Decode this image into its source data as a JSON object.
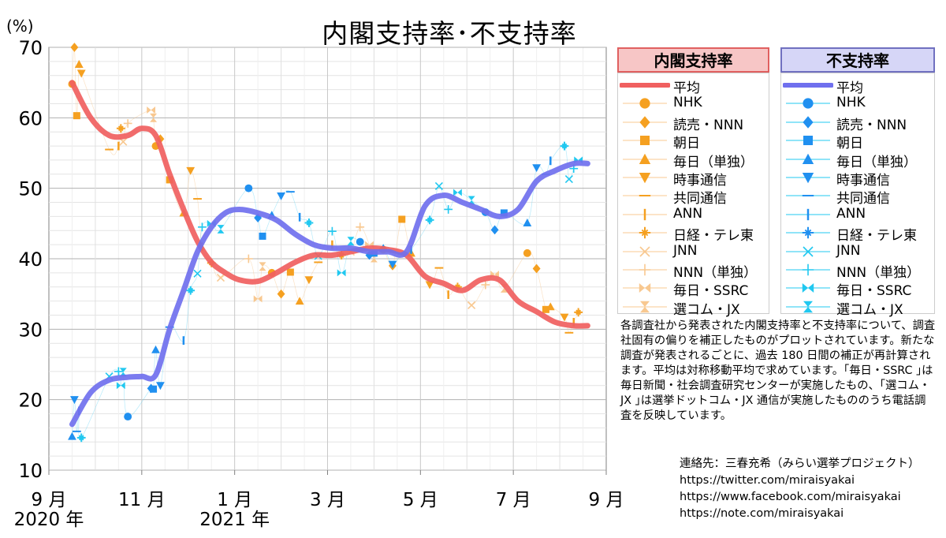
{
  "title": "内閣支持率･不支持率",
  "colors": {
    "approve": "#f06060",
    "disapprove": "#7070ee",
    "approve_marker": "#f5a020",
    "disapprove_marker": "#2090f0",
    "approve_faint": "#f8c890",
    "disapprove_faint": "#70d8f8"
  },
  "legend": {
    "approve": {
      "header": "内閣支持率",
      "items": [
        {
          "label": "平均",
          "marker": "line"
        },
        {
          "label": "NHK",
          "marker": "circle"
        },
        {
          "label": "読売・NNN",
          "marker": "diamond"
        },
        {
          "label": "朝日",
          "marker": "square"
        },
        {
          "label": "毎日（単独）",
          "marker": "triangle-up"
        },
        {
          "label": "時事通信",
          "marker": "triangle-down"
        },
        {
          "label": "共同通信",
          "marker": "hbar"
        },
        {
          "label": "ANN",
          "marker": "vbar"
        },
        {
          "label": "日経・テレ東",
          "marker": "star"
        },
        {
          "label": "JNN",
          "marker": "x"
        },
        {
          "label": "NNN（単独）",
          "marker": "plus"
        },
        {
          "label": "毎日・SSRC",
          "marker": "bowtie-h"
        },
        {
          "label": "選コム・JX",
          "marker": "bowtie-v"
        }
      ]
    },
    "disapprove": {
      "header": "不支持率",
      "items": [
        {
          "label": "平均",
          "marker": "line"
        },
        {
          "label": "NHK",
          "marker": "circle"
        },
        {
          "label": "読売・NNN",
          "marker": "diamond"
        },
        {
          "label": "朝日",
          "marker": "square"
        },
        {
          "label": "毎日（単独）",
          "marker": "triangle-up"
        },
        {
          "label": "時事通信",
          "marker": "triangle-down"
        },
        {
          "label": "共同通信",
          "marker": "hbar"
        },
        {
          "label": "ANN",
          "marker": "vbar"
        },
        {
          "label": "日経・テレ東",
          "marker": "star"
        },
        {
          "label": "JNN",
          "marker": "x"
        },
        {
          "label": "NNN（単独）",
          "marker": "plus"
        },
        {
          "label": "毎日・SSRC",
          "marker": "bowtie-h"
        },
        {
          "label": "選コム・JX",
          "marker": "bowtie-v"
        }
      ]
    }
  },
  "note": "各調査社から発表された内閣支持率と不支持率について、調査社固有の偏りを補正したものがプロットされています。新たな調査が発表されるごとに、過去 180 日間の補正が再計算されます。平均は対称移動平均で求めています。｢毎日・SSRC ｣は毎日新聞・社会調査研究センターが実施したもの、｢選コム・JX ｣は選挙ドットコム・JX 通信が実施したもののうち電話調査を反映しています。",
  "contact": [
    "連絡先：三春充希（みらい選挙プロジェクト）",
    "https://twitter.com/miraisyakai",
    "https://www.facebook.com/miraisyakai",
    "https://note.com/miraisyakai"
  ],
  "chart_data": {
    "type": "line",
    "title": "内閣支持率･不支持率",
    "ylabel": "(%)",
    "ylim": [
      10,
      70
    ],
    "yticks": [
      10,
      20,
      30,
      40,
      50,
      60,
      70
    ],
    "xlim": [
      0,
      12
    ],
    "xticks": [
      {
        "x": 0,
        "label": "9 月",
        "sub": "2020 年"
      },
      {
        "x": 2,
        "label": "11 月",
        "sub": ""
      },
      {
        "x": 4,
        "label": "1 月",
        "sub": "2021 年"
      },
      {
        "x": 6,
        "label": "3 月",
        "sub": ""
      },
      {
        "x": 8,
        "label": "5 月",
        "sub": ""
      },
      {
        "x": 10,
        "label": "7 月",
        "sub": ""
      },
      {
        "x": 12,
        "label": "9 月",
        "sub": ""
      }
    ],
    "x_unit": "months since 2020-09-01",
    "series": [
      {
        "name": "内閣支持率 平均",
        "x": [
          0.5,
          0.9,
          1.3,
          1.7,
          2.0,
          2.3,
          2.6,
          2.9,
          3.2,
          3.5,
          3.8,
          4.1,
          4.5,
          4.9,
          5.3,
          5.7,
          6.1,
          6.5,
          6.9,
          7.3,
          7.7,
          8.1,
          8.5,
          8.9,
          9.3,
          9.7,
          10.1,
          10.5,
          10.9,
          11.3,
          11.6
        ],
        "values": [
          65.0,
          60.0,
          57.5,
          57.5,
          58.5,
          57.5,
          52.0,
          47.0,
          42.5,
          39.5,
          38.0,
          37.0,
          36.8,
          38.0,
          39.5,
          40.5,
          40.5,
          41.0,
          41.5,
          41.3,
          40.5,
          37.5,
          36.5,
          35.5,
          37.0,
          37.0,
          34.0,
          32.5,
          31.0,
          30.5,
          30.5
        ]
      },
      {
        "name": "不支持率 平均",
        "x": [
          0.5,
          0.9,
          1.3,
          1.7,
          2.0,
          2.3,
          2.6,
          2.9,
          3.2,
          3.5,
          3.8,
          4.1,
          4.5,
          4.9,
          5.3,
          5.7,
          6.1,
          6.5,
          6.9,
          7.3,
          7.7,
          8.1,
          8.5,
          8.9,
          9.3,
          9.7,
          10.1,
          10.5,
          10.9,
          11.3,
          11.6
        ],
        "values": [
          16.5,
          21.0,
          22.8,
          23.2,
          23.3,
          23.5,
          30.0,
          35.5,
          41.0,
          44.5,
          46.5,
          47.0,
          46.5,
          45.5,
          43.5,
          42.0,
          41.5,
          41.5,
          41.0,
          41.0,
          41.0,
          47.5,
          49.0,
          48.0,
          47.0,
          46.0,
          47.0,
          51.0,
          52.5,
          53.5,
          53.5
        ]
      },
      {
        "name": "内閣支持率 各社",
        "x": [
          0.5,
          0.55,
          0.6,
          0.65,
          0.7,
          1.3,
          1.5,
          1.55,
          1.6,
          1.7,
          2.2,
          2.25,
          2.3,
          2.4,
          2.6,
          2.9,
          3.05,
          3.2,
          3.3,
          3.5,
          3.7,
          4.3,
          4.5,
          4.6,
          4.8,
          5.0,
          5.2,
          5.4,
          5.6,
          5.8,
          6.1,
          6.3,
          6.5,
          6.7,
          6.9,
          7.0,
          7.2,
          7.4,
          7.6,
          7.8,
          8.2,
          8.4,
          8.6,
          8.8,
          9.1,
          9.4,
          9.6,
          9.8,
          10.3,
          10.5,
          10.7,
          10.8,
          11.1,
          11.2,
          11.3,
          11.4
        ],
        "values": [
          64.8,
          70.0,
          60.3,
          67.6,
          66.3,
          55.5,
          56.0,
          58.5,
          56.6,
          59.2,
          61.1,
          60.0,
          56.0,
          57.0,
          51.2,
          46.5,
          52.5,
          48.5,
          41.7,
          39.4,
          37.3,
          40.0,
          34.3,
          38.9,
          38.0,
          35.0,
          38.1,
          34.0,
          37.0,
          39.5,
          42.0,
          40.5,
          41.0,
          44.5,
          42.0,
          40.1,
          41.3,
          39.0,
          45.6,
          40.8,
          36.3,
          38.7,
          34.9,
          36.0,
          33.4,
          36.3,
          37.8,
          35.8,
          40.8,
          38.6,
          32.8,
          33.2,
          31.7,
          29.5,
          31.0,
          32.4
        ]
      },
      {
        "name": "不支持率 各社",
        "x": [
          0.5,
          0.55,
          0.6,
          0.65,
          0.7,
          1.3,
          1.5,
          1.55,
          1.6,
          1.7,
          2.2,
          2.25,
          2.3,
          2.4,
          2.6,
          2.9,
          3.05,
          3.2,
          3.3,
          3.5,
          3.7,
          4.3,
          4.5,
          4.6,
          4.8,
          5.0,
          5.2,
          5.4,
          5.6,
          5.8,
          6.1,
          6.3,
          6.5,
          6.7,
          6.9,
          7.0,
          7.2,
          7.4,
          7.6,
          7.8,
          8.2,
          8.4,
          8.6,
          8.8,
          9.1,
          9.4,
          9.6,
          9.8,
          10.3,
          10.5,
          10.7,
          10.8,
          11.1,
          11.2,
          11.3,
          11.4
        ],
        "values": [
          14.8,
          20.0,
          15.5,
          18.4,
          14.6,
          23.3,
          24.0,
          22.0,
          23.9,
          17.6,
          21.6,
          21.5,
          27.1,
          22.0,
          30.3,
          28.4,
          35.5,
          37.9,
          44.5,
          45.0,
          44.2,
          50.0,
          45.8,
          43.2,
          46.2,
          48.9,
          49.5,
          45.9,
          45.1,
          40.4,
          43.9,
          38.0,
          42.5,
          42.4,
          40.5,
          40.8,
          41.5,
          39.2,
          40.7,
          41.3,
          45.5,
          50.3,
          47.0,
          49.4,
          48.3,
          46.6,
          44.1,
          46.5,
          45.1,
          52.9,
          52.0,
          53.9,
          56.0,
          51.3,
          52.8,
          54.0
        ]
      }
    ]
  }
}
